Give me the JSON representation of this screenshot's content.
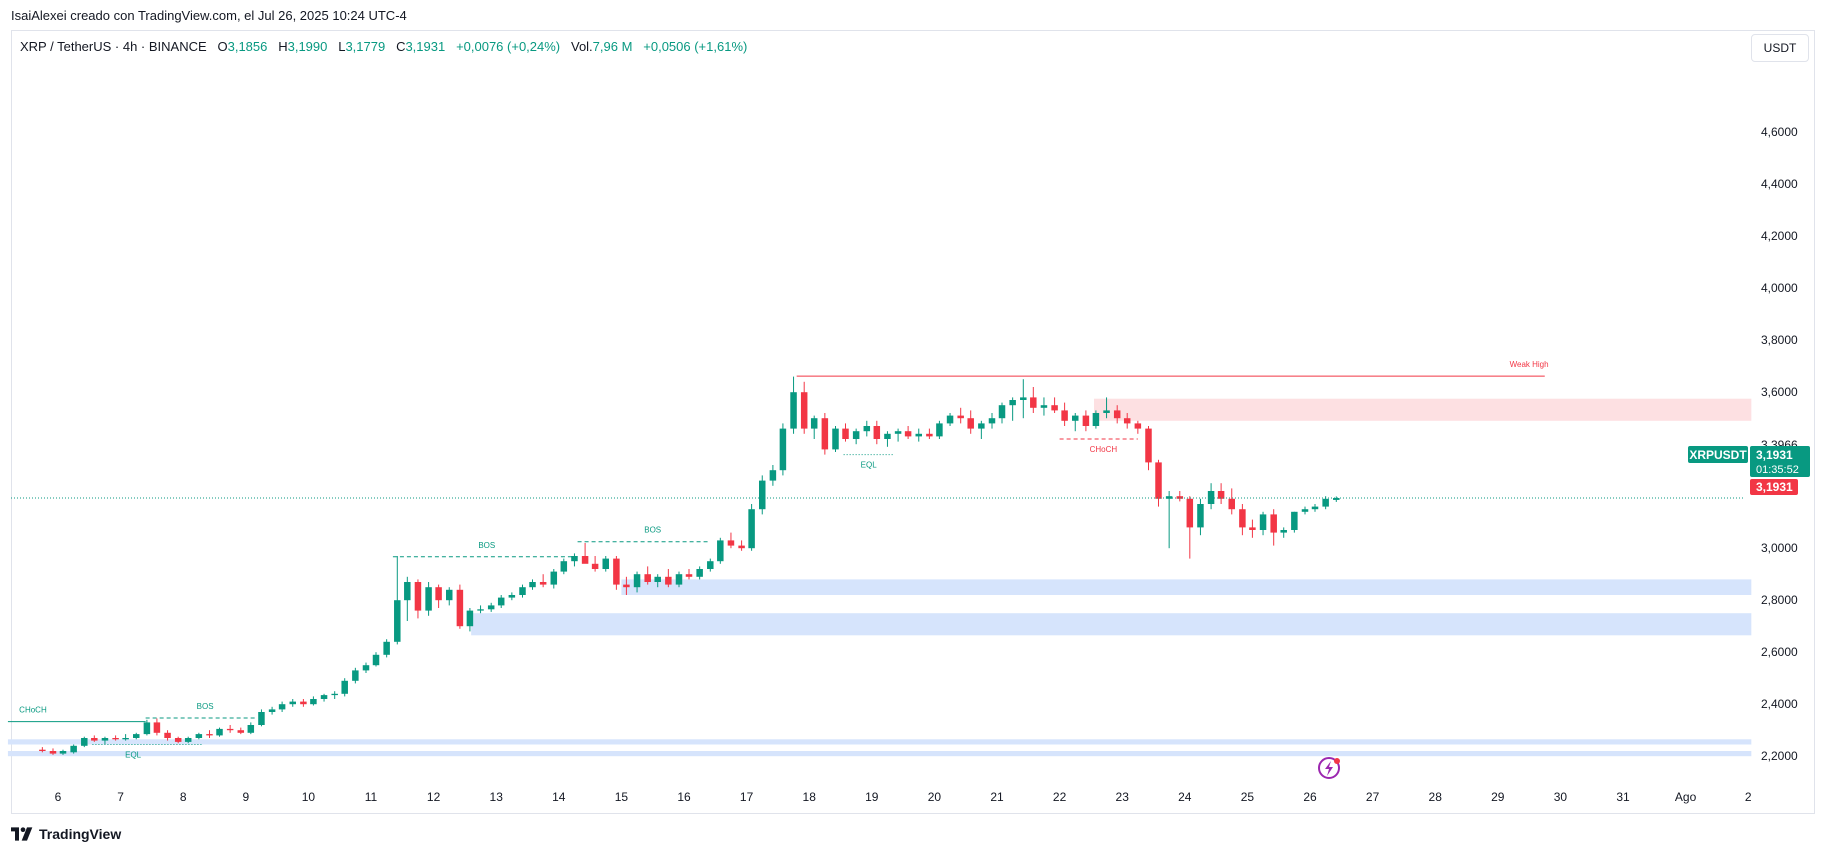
{
  "caption": "IsaiAlexei creado con TradingView.com, el Jul 26, 2025 10:24 UTC-4",
  "legend": {
    "symbol": "XRP / TetherUS · 4h · BINANCE",
    "o_label": "O",
    "o": "3,1856",
    "h_label": "H",
    "h": "3,1990",
    "l_label": "L",
    "l": "3,1779",
    "c_label": "C",
    "c": "3,1931",
    "change": "+0,0076 (+0,24%)",
    "vol_label": "Vol.",
    "vol": "7,96 M",
    "vol_change": "+0,0506 (+1,61%)"
  },
  "currency_button": "USDT",
  "brand": "TradingView",
  "colors": {
    "up": "#089981",
    "down": "#f23645",
    "zone_blue": "#d6e4fc",
    "zone_red": "#fde0e2"
  },
  "chart_data": {
    "type": "candlestick",
    "symbol_tag": "XRPUSDT",
    "last_price": "3,1931",
    "countdown": "01:35:52",
    "close_label": "3,1931",
    "y_ticks": [
      "4,6000",
      "4,4000",
      "4,2000",
      "4,0000",
      "3,8000",
      "3,6000",
      "3,3966",
      "3,0000",
      "2,8000",
      "2,6000",
      "2,4000",
      "2,2000"
    ],
    "y_tick_values": [
      4.6,
      4.4,
      4.2,
      4.0,
      3.8,
      3.6,
      3.3966,
      3.0,
      2.8,
      2.6,
      2.4,
      2.2
    ],
    "ylim": [
      2.07,
      4.87
    ],
    "x_ticks": [
      "6",
      "7",
      "8",
      "9",
      "10",
      "11",
      "12",
      "13",
      "14",
      "15",
      "16",
      "17",
      "18",
      "19",
      "20",
      "21",
      "22",
      "23",
      "24",
      "25",
      "26",
      "27",
      "28",
      "29",
      "30",
      "31",
      "Ago",
      "2"
    ],
    "x_tick_days": [
      6,
      7,
      8,
      9,
      10,
      11,
      12,
      13,
      14,
      15,
      16,
      17,
      18,
      19,
      20,
      21,
      22,
      23,
      24,
      25,
      26,
      27,
      28,
      29,
      30,
      31,
      32,
      33
    ],
    "candles": [
      {
        "day": 5.75,
        "o": 2.225,
        "h": 2.235,
        "l": 2.215,
        "c": 2.22
      },
      {
        "day": 5.92,
        "o": 2.22,
        "h": 2.23,
        "l": 2.205,
        "c": 2.21
      },
      {
        "day": 6.08,
        "o": 2.21,
        "h": 2.225,
        "l": 2.205,
        "c": 2.22
      },
      {
        "day": 6.25,
        "o": 2.215,
        "h": 2.245,
        "l": 2.21,
        "c": 2.24
      },
      {
        "day": 6.42,
        "o": 2.24,
        "h": 2.275,
        "l": 2.235,
        "c": 2.27
      },
      {
        "day": 6.58,
        "o": 2.27,
        "h": 2.28,
        "l": 2.255,
        "c": 2.26
      },
      {
        "day": 6.75,
        "o": 2.26,
        "h": 2.275,
        "l": 2.245,
        "c": 2.27
      },
      {
        "day": 6.92,
        "o": 2.27,
        "h": 2.28,
        "l": 2.26,
        "c": 2.265
      },
      {
        "day": 7.08,
        "o": 2.265,
        "h": 2.285,
        "l": 2.26,
        "c": 2.27
      },
      {
        "day": 7.25,
        "o": 2.27,
        "h": 2.29,
        "l": 2.265,
        "c": 2.285
      },
      {
        "day": 7.42,
        "o": 2.285,
        "h": 2.34,
        "l": 2.28,
        "c": 2.33
      },
      {
        "day": 7.58,
        "o": 2.33,
        "h": 2.345,
        "l": 2.28,
        "c": 2.29
      },
      {
        "day": 7.75,
        "o": 2.29,
        "h": 2.3,
        "l": 2.26,
        "c": 2.27
      },
      {
        "day": 7.92,
        "o": 2.27,
        "h": 2.275,
        "l": 2.25,
        "c": 2.255
      },
      {
        "day": 8.08,
        "o": 2.255,
        "h": 2.275,
        "l": 2.25,
        "c": 2.27
      },
      {
        "day": 8.25,
        "o": 2.27,
        "h": 2.29,
        "l": 2.265,
        "c": 2.285
      },
      {
        "day": 8.42,
        "o": 2.285,
        "h": 2.3,
        "l": 2.27,
        "c": 2.28
      },
      {
        "day": 8.58,
        "o": 2.28,
        "h": 2.31,
        "l": 2.275,
        "c": 2.305
      },
      {
        "day": 8.75,
        "o": 2.305,
        "h": 2.32,
        "l": 2.29,
        "c": 2.3
      },
      {
        "day": 8.92,
        "o": 2.3,
        "h": 2.31,
        "l": 2.285,
        "c": 2.29
      },
      {
        "day": 9.08,
        "o": 2.29,
        "h": 2.33,
        "l": 2.285,
        "c": 2.32
      },
      {
        "day": 9.25,
        "o": 2.32,
        "h": 2.38,
        "l": 2.315,
        "c": 2.37
      },
      {
        "day": 9.42,
        "o": 2.37,
        "h": 2.39,
        "l": 2.36,
        "c": 2.38
      },
      {
        "day": 9.58,
        "o": 2.38,
        "h": 2.41,
        "l": 2.37,
        "c": 2.4
      },
      {
        "day": 9.75,
        "o": 2.4,
        "h": 2.42,
        "l": 2.39,
        "c": 2.41
      },
      {
        "day": 9.92,
        "o": 2.41,
        "h": 2.42,
        "l": 2.39,
        "c": 2.4
      },
      {
        "day": 10.08,
        "o": 2.4,
        "h": 2.43,
        "l": 2.395,
        "c": 2.42
      },
      {
        "day": 10.25,
        "o": 2.42,
        "h": 2.44,
        "l": 2.41,
        "c": 2.435
      },
      {
        "day": 10.42,
        "o": 2.435,
        "h": 2.45,
        "l": 2.42,
        "c": 2.44
      },
      {
        "day": 10.58,
        "o": 2.44,
        "h": 2.5,
        "l": 2.43,
        "c": 2.49
      },
      {
        "day": 10.75,
        "o": 2.49,
        "h": 2.54,
        "l": 2.48,
        "c": 2.53
      },
      {
        "day": 10.92,
        "o": 2.53,
        "h": 2.56,
        "l": 2.52,
        "c": 2.55
      },
      {
        "day": 11.08,
        "o": 2.55,
        "h": 2.6,
        "l": 2.545,
        "c": 2.59
      },
      {
        "day": 11.25,
        "o": 2.59,
        "h": 2.65,
        "l": 2.58,
        "c": 2.64
      },
      {
        "day": 11.42,
        "o": 2.64,
        "h": 2.97,
        "l": 2.63,
        "c": 2.8
      },
      {
        "day": 11.58,
        "o": 2.8,
        "h": 2.89,
        "l": 2.72,
        "c": 2.87
      },
      {
        "day": 11.75,
        "o": 2.87,
        "h": 2.88,
        "l": 2.73,
        "c": 2.76
      },
      {
        "day": 11.92,
        "o": 2.76,
        "h": 2.87,
        "l": 2.74,
        "c": 2.85
      },
      {
        "day": 12.08,
        "o": 2.85,
        "h": 2.86,
        "l": 2.77,
        "c": 2.8
      },
      {
        "day": 12.25,
        "o": 2.8,
        "h": 2.85,
        "l": 2.78,
        "c": 2.84
      },
      {
        "day": 12.42,
        "o": 2.84,
        "h": 2.86,
        "l": 2.69,
        "c": 2.7
      },
      {
        "day": 12.58,
        "o": 2.7,
        "h": 2.77,
        "l": 2.68,
        "c": 2.76
      },
      {
        "day": 12.75,
        "o": 2.76,
        "h": 2.78,
        "l": 2.75,
        "c": 2.765
      },
      {
        "day": 12.92,
        "o": 2.765,
        "h": 2.79,
        "l": 2.755,
        "c": 2.78
      },
      {
        "day": 13.08,
        "o": 2.78,
        "h": 2.82,
        "l": 2.77,
        "c": 2.81
      },
      {
        "day": 13.25,
        "o": 2.81,
        "h": 2.83,
        "l": 2.8,
        "c": 2.82
      },
      {
        "day": 13.42,
        "o": 2.82,
        "h": 2.86,
        "l": 2.81,
        "c": 2.85
      },
      {
        "day": 13.58,
        "o": 2.85,
        "h": 2.88,
        "l": 2.84,
        "c": 2.87
      },
      {
        "day": 13.75,
        "o": 2.87,
        "h": 2.9,
        "l": 2.85,
        "c": 2.86
      },
      {
        "day": 13.92,
        "o": 2.86,
        "h": 2.92,
        "l": 2.845,
        "c": 2.91
      },
      {
        "day": 14.08,
        "o": 2.91,
        "h": 2.96,
        "l": 2.9,
        "c": 2.95
      },
      {
        "day": 14.25,
        "o": 2.95,
        "h": 2.98,
        "l": 2.93,
        "c": 2.97
      },
      {
        "day": 14.42,
        "o": 2.97,
        "h": 3.02,
        "l": 2.95,
        "c": 2.94
      },
      {
        "day": 14.58,
        "o": 2.94,
        "h": 2.97,
        "l": 2.91,
        "c": 2.92
      },
      {
        "day": 14.75,
        "o": 2.92,
        "h": 2.97,
        "l": 2.91,
        "c": 2.96
      },
      {
        "day": 14.92,
        "o": 2.96,
        "h": 2.97,
        "l": 2.84,
        "c": 2.86
      },
      {
        "day": 15.08,
        "o": 2.86,
        "h": 2.89,
        "l": 2.82,
        "c": 2.85
      },
      {
        "day": 15.25,
        "o": 2.85,
        "h": 2.91,
        "l": 2.83,
        "c": 2.9
      },
      {
        "day": 15.42,
        "o": 2.9,
        "h": 2.93,
        "l": 2.86,
        "c": 2.87
      },
      {
        "day": 15.58,
        "o": 2.87,
        "h": 2.9,
        "l": 2.85,
        "c": 2.89
      },
      {
        "day": 15.75,
        "o": 2.89,
        "h": 2.92,
        "l": 2.85,
        "c": 2.86
      },
      {
        "day": 15.92,
        "o": 2.86,
        "h": 2.91,
        "l": 2.85,
        "c": 2.9
      },
      {
        "day": 16.08,
        "o": 2.9,
        "h": 2.92,
        "l": 2.88,
        "c": 2.89
      },
      {
        "day": 16.25,
        "o": 2.89,
        "h": 2.93,
        "l": 2.88,
        "c": 2.92
      },
      {
        "day": 16.42,
        "o": 2.92,
        "h": 2.96,
        "l": 2.91,
        "c": 2.95
      },
      {
        "day": 16.58,
        "o": 2.95,
        "h": 3.04,
        "l": 2.94,
        "c": 3.03
      },
      {
        "day": 16.75,
        "o": 3.03,
        "h": 3.06,
        "l": 3.0,
        "c": 3.01
      },
      {
        "day": 16.92,
        "o": 3.01,
        "h": 3.03,
        "l": 2.99,
        "c": 3.0
      },
      {
        "day": 17.08,
        "o": 3.0,
        "h": 3.17,
        "l": 2.99,
        "c": 3.15
      },
      {
        "day": 17.25,
        "o": 3.15,
        "h": 3.28,
        "l": 3.13,
        "c": 3.26
      },
      {
        "day": 17.42,
        "o": 3.26,
        "h": 3.32,
        "l": 3.24,
        "c": 3.3
      },
      {
        "day": 17.58,
        "o": 3.3,
        "h": 3.48,
        "l": 3.28,
        "c": 3.46
      },
      {
        "day": 17.75,
        "o": 3.46,
        "h": 3.66,
        "l": 3.44,
        "c": 3.6
      },
      {
        "day": 17.92,
        "o": 3.6,
        "h": 3.64,
        "l": 3.44,
        "c": 3.46
      },
      {
        "day": 18.08,
        "o": 3.46,
        "h": 3.51,
        "l": 3.42,
        "c": 3.5
      },
      {
        "day": 18.25,
        "o": 3.5,
        "h": 3.52,
        "l": 3.36,
        "c": 3.38
      },
      {
        "day": 18.42,
        "o": 3.38,
        "h": 3.47,
        "l": 3.37,
        "c": 3.46
      },
      {
        "day": 18.58,
        "o": 3.46,
        "h": 3.48,
        "l": 3.41,
        "c": 3.42
      },
      {
        "day": 18.75,
        "o": 3.42,
        "h": 3.46,
        "l": 3.4,
        "c": 3.45
      },
      {
        "day": 18.92,
        "o": 3.45,
        "h": 3.49,
        "l": 3.43,
        "c": 3.47
      },
      {
        "day": 19.08,
        "o": 3.47,
        "h": 3.49,
        "l": 3.4,
        "c": 3.42
      },
      {
        "day": 19.25,
        "o": 3.42,
        "h": 3.45,
        "l": 3.39,
        "c": 3.44
      },
      {
        "day": 19.42,
        "o": 3.44,
        "h": 3.46,
        "l": 3.41,
        "c": 3.45
      },
      {
        "day": 19.58,
        "o": 3.45,
        "h": 3.47,
        "l": 3.42,
        "c": 3.43
      },
      {
        "day": 19.75,
        "o": 3.43,
        "h": 3.46,
        "l": 3.41,
        "c": 3.44
      },
      {
        "day": 19.92,
        "o": 3.44,
        "h": 3.46,
        "l": 3.42,
        "c": 3.43
      },
      {
        "day": 20.08,
        "o": 3.43,
        "h": 3.49,
        "l": 3.42,
        "c": 3.48
      },
      {
        "day": 20.25,
        "o": 3.48,
        "h": 3.52,
        "l": 3.47,
        "c": 3.51
      },
      {
        "day": 20.42,
        "o": 3.51,
        "h": 3.54,
        "l": 3.48,
        "c": 3.5
      },
      {
        "day": 20.58,
        "o": 3.5,
        "h": 3.53,
        "l": 3.44,
        "c": 3.46
      },
      {
        "day": 20.75,
        "o": 3.46,
        "h": 3.49,
        "l": 3.42,
        "c": 3.48
      },
      {
        "day": 20.92,
        "o": 3.48,
        "h": 3.52,
        "l": 3.46,
        "c": 3.5
      },
      {
        "day": 21.08,
        "o": 3.5,
        "h": 3.56,
        "l": 3.48,
        "c": 3.55
      },
      {
        "day": 21.25,
        "o": 3.55,
        "h": 3.58,
        "l": 3.49,
        "c": 3.57
      },
      {
        "day": 21.42,
        "o": 3.57,
        "h": 3.65,
        "l": 3.5,
        "c": 3.58
      },
      {
        "day": 21.58,
        "o": 3.58,
        "h": 3.62,
        "l": 3.52,
        "c": 3.54
      },
      {
        "day": 21.75,
        "o": 3.54,
        "h": 3.58,
        "l": 3.51,
        "c": 3.55
      },
      {
        "day": 21.92,
        "o": 3.55,
        "h": 3.58,
        "l": 3.52,
        "c": 3.53
      },
      {
        "day": 22.08,
        "o": 3.53,
        "h": 3.56,
        "l": 3.47,
        "c": 3.49
      },
      {
        "day": 22.25,
        "o": 3.49,
        "h": 3.52,
        "l": 3.45,
        "c": 3.51
      },
      {
        "day": 22.42,
        "o": 3.51,
        "h": 3.53,
        "l": 3.45,
        "c": 3.47
      },
      {
        "day": 22.58,
        "o": 3.47,
        "h": 3.53,
        "l": 3.46,
        "c": 3.52
      },
      {
        "day": 22.75,
        "o": 3.52,
        "h": 3.58,
        "l": 3.5,
        "c": 3.53
      },
      {
        "day": 22.92,
        "o": 3.53,
        "h": 3.55,
        "l": 3.48,
        "c": 3.5
      },
      {
        "day": 23.08,
        "o": 3.5,
        "h": 3.52,
        "l": 3.46,
        "c": 3.48
      },
      {
        "day": 23.25,
        "o": 3.48,
        "h": 3.49,
        "l": 3.44,
        "c": 3.46
      },
      {
        "day": 23.42,
        "o": 3.46,
        "h": 3.47,
        "l": 3.3,
        "c": 3.33
      },
      {
        "day": 23.58,
        "o": 3.33,
        "h": 3.34,
        "l": 3.16,
        "c": 3.19
      },
      {
        "day": 23.75,
        "o": 3.19,
        "h": 3.22,
        "l": 3.0,
        "c": 3.2
      },
      {
        "day": 23.92,
        "o": 3.2,
        "h": 3.22,
        "l": 3.18,
        "c": 3.19
      },
      {
        "day": 24.08,
        "o": 3.19,
        "h": 3.2,
        "l": 2.96,
        "c": 3.08
      },
      {
        "day": 24.25,
        "o": 3.08,
        "h": 3.19,
        "l": 3.05,
        "c": 3.17
      },
      {
        "day": 24.42,
        "o": 3.17,
        "h": 3.25,
        "l": 3.15,
        "c": 3.22
      },
      {
        "day": 24.58,
        "o": 3.22,
        "h": 3.25,
        "l": 3.17,
        "c": 3.19
      },
      {
        "day": 24.75,
        "o": 3.19,
        "h": 3.23,
        "l": 3.13,
        "c": 3.15
      },
      {
        "day": 24.92,
        "o": 3.15,
        "h": 3.17,
        "l": 3.05,
        "c": 3.08
      },
      {
        "day": 25.08,
        "o": 3.08,
        "h": 3.11,
        "l": 3.04,
        "c": 3.07
      },
      {
        "day": 25.25,
        "o": 3.07,
        "h": 3.14,
        "l": 3.05,
        "c": 3.13
      },
      {
        "day": 25.42,
        "o": 3.13,
        "h": 3.15,
        "l": 3.01,
        "c": 3.06
      },
      {
        "day": 25.58,
        "o": 3.06,
        "h": 3.08,
        "l": 3.04,
        "c": 3.07
      },
      {
        "day": 25.75,
        "o": 3.07,
        "h": 3.14,
        "l": 3.06,
        "c": 3.14
      },
      {
        "day": 25.92,
        "o": 3.14,
        "h": 3.16,
        "l": 3.13,
        "c": 3.15
      },
      {
        "day": 26.08,
        "o": 3.15,
        "h": 3.17,
        "l": 3.14,
        "c": 3.16
      },
      {
        "day": 26.25,
        "o": 3.16,
        "h": 3.2,
        "l": 3.15,
        "c": 3.19
      },
      {
        "day": 26.42,
        "o": 3.1856,
        "h": 3.199,
        "l": 3.1779,
        "c": 3.1931
      }
    ],
    "zones": [
      {
        "name": "supply-zone",
        "day_start": 22.55,
        "day_end": 33.05,
        "low": 3.49,
        "high": 3.575,
        "color": "zone_red"
      },
      {
        "name": "demand-zone-1",
        "day_start": 15.0,
        "day_end": 33.05,
        "low": 2.82,
        "high": 2.88,
        "color": "zone_blue"
      },
      {
        "name": "demand-zone-2",
        "day_start": 12.6,
        "day_end": 33.05,
        "low": 2.665,
        "high": 2.75,
        "color": "zone_blue"
      },
      {
        "name": "demand-zone-3",
        "day_start": 5.2,
        "day_end": 33.05,
        "low": 2.245,
        "high": 2.265,
        "color": "zone_blue"
      },
      {
        "name": "demand-zone-4",
        "day_start": 5.2,
        "day_end": 33.05,
        "low": 2.2,
        "high": 2.22,
        "color": "zone_blue"
      }
    ],
    "levels": [
      {
        "name": "weak-high-line",
        "day_start": 17.8,
        "day_end": 29.75,
        "price": 3.662,
        "style": "solid",
        "color": "down",
        "label": "Weak High",
        "label_day": 29.5
      },
      {
        "name": "choch-bear-line",
        "day_start": 22.0,
        "day_end": 23.25,
        "price": 3.42,
        "style": "dashed",
        "color": "down",
        "label": "CHoCH",
        "label_day": 22.7
      },
      {
        "name": "bos-line-1",
        "day_start": 11.35,
        "day_end": 14.3,
        "price": 2.967,
        "style": "dashed",
        "color": "up",
        "label": "BOS",
        "label_day": 12.85
      },
      {
        "name": "bos-line-2",
        "day_start": 14.3,
        "day_end": 16.4,
        "price": 3.025,
        "style": "dashed",
        "color": "up",
        "label": "BOS",
        "label_day": 15.5
      },
      {
        "name": "eql-line-1",
        "day_start": 18.55,
        "day_end": 19.35,
        "price": 3.36,
        "style": "dotted",
        "color": "up",
        "label": "EQL",
        "label_day": 18.95
      },
      {
        "name": "bos-line-3",
        "day_start": 7.4,
        "day_end": 9.15,
        "price": 2.347,
        "style": "dashed",
        "color": "up",
        "label": "BOS",
        "label_day": 8.35
      },
      {
        "name": "choch-bull-line",
        "day_start": 5.2,
        "day_end": 7.4,
        "price": 2.333,
        "style": "solid",
        "color": "up",
        "label": "CHoCH",
        "label_day": 5.6
      },
      {
        "name": "eql-line-2",
        "day_start": 6.55,
        "day_end": 8.3,
        "price": 2.245,
        "style": "dotted",
        "color": "up",
        "label": "EQL",
        "label_day": 7.2
      }
    ]
  }
}
